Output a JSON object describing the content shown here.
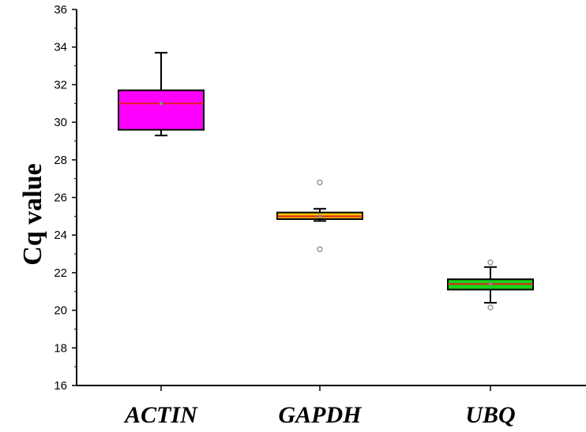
{
  "chart_data": {
    "type": "box",
    "ylabel": "Cq value",
    "xlabel": "",
    "ylim": [
      16,
      36
    ],
    "yticks": [
      16,
      18,
      20,
      22,
      24,
      26,
      28,
      30,
      32,
      34,
      36
    ],
    "yticks_text": [
      "16",
      "18",
      "20",
      "22",
      "24",
      "26",
      "28",
      "30",
      "32",
      "34",
      "36"
    ],
    "categories": [
      "ACTIN",
      "GAPDH",
      "UBQ"
    ],
    "boxes": [
      {
        "category": "ACTIN",
        "whisker_low": 29.3,
        "q1": 29.6,
        "median": 31.0,
        "mean": 31.0,
        "q3": 31.7,
        "whisker_high": 33.7,
        "outliers": [],
        "box_color": "#ff00ff",
        "median_color": "#e02020"
      },
      {
        "category": "GAPDH",
        "whisker_low": 24.75,
        "q1": 24.85,
        "median": 25.0,
        "mean": 25.0,
        "q3": 25.2,
        "whisker_high": 25.4,
        "outliers": [
          26.8,
          23.25
        ],
        "box_color": "#f5c400",
        "median_color": "#e02020"
      },
      {
        "category": "UBQ",
        "whisker_low": 20.4,
        "q1": 21.1,
        "median": 21.4,
        "mean": 21.4,
        "q3": 21.65,
        "whisker_high": 22.3,
        "outliers": [
          22.55,
          20.15
        ],
        "box_color": "#19d219",
        "median_color": "#e02020"
      }
    ],
    "grid": false,
    "legend": "none"
  }
}
